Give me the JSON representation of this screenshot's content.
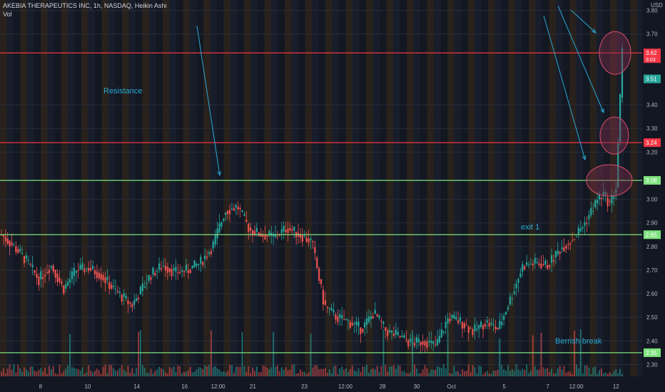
{
  "header": {
    "symbol_line": "AKEBIA THERAPEUTICS INC, 1h, NASDAQ, Heikin Ashi",
    "volume_label": "Vol"
  },
  "currency": "USD",
  "colors": {
    "background": "#131722",
    "up": "#26a69a",
    "down": "#ef5350",
    "resistance_line": "#f23645",
    "support_line": "#7ee37e",
    "annotation": "#2aa9d4",
    "circle_fill": "#7a2f4a",
    "circle_stroke": "#d94e6a"
  },
  "chart_data": {
    "type": "candlestick",
    "style": "Heikin Ashi",
    "ylim": [
      2.25,
      3.82
    ],
    "y_ticks": [
      "3.80",
      "3.70",
      "3.40",
      "3.30",
      "3.20",
      "3.00",
      "2.90",
      "2.80",
      "2.70",
      "2.60",
      "2.50",
      "2.40",
      "2.30"
    ],
    "x_ticks": [
      "8",
      "10",
      "14",
      "16",
      "12:00",
      "21",
      "23",
      "12:00",
      "28",
      "30",
      "Oct",
      "5",
      "7",
      "12:00",
      "12"
    ],
    "x_tick_pos": [
      0.063,
      0.139,
      0.218,
      0.295,
      0.349,
      0.405,
      0.488,
      0.554,
      0.614,
      0.669,
      0.725,
      0.81,
      0.88,
      0.926,
      0.99
    ],
    "price_path": [
      [
        0.0,
        2.85
      ],
      [
        0.02,
        2.8
      ],
      [
        0.04,
        2.74
      ],
      [
        0.06,
        2.66
      ],
      [
        0.08,
        2.72
      ],
      [
        0.1,
        2.62
      ],
      [
        0.12,
        2.7
      ],
      [
        0.14,
        2.71
      ],
      [
        0.16,
        2.68
      ],
      [
        0.18,
        2.62
      ],
      [
        0.21,
        2.55
      ],
      [
        0.24,
        2.68
      ],
      [
        0.26,
        2.72
      ],
      [
        0.28,
        2.69
      ],
      [
        0.3,
        2.7
      ],
      [
        0.32,
        2.73
      ],
      [
        0.34,
        2.8
      ],
      [
        0.36,
        2.95
      ],
      [
        0.38,
        2.97
      ],
      [
        0.4,
        2.87
      ],
      [
        0.42,
        2.85
      ],
      [
        0.44,
        2.84
      ],
      [
        0.46,
        2.88
      ],
      [
        0.48,
        2.85
      ],
      [
        0.5,
        2.82
      ],
      [
        0.52,
        2.55
      ],
      [
        0.54,
        2.5
      ],
      [
        0.56,
        2.48
      ],
      [
        0.58,
        2.45
      ],
      [
        0.6,
        2.52
      ],
      [
        0.62,
        2.44
      ],
      [
        0.64,
        2.42
      ],
      [
        0.66,
        2.39
      ],
      [
        0.68,
        2.4
      ],
      [
        0.7,
        2.38
      ],
      [
        0.72,
        2.5
      ],
      [
        0.74,
        2.48
      ],
      [
        0.76,
        2.44
      ],
      [
        0.78,
        2.48
      ],
      [
        0.8,
        2.45
      ],
      [
        0.82,
        2.58
      ],
      [
        0.84,
        2.72
      ],
      [
        0.86,
        2.73
      ],
      [
        0.88,
        2.72
      ],
      [
        0.9,
        2.79
      ],
      [
        0.92,
        2.83
      ],
      [
        0.94,
        2.9
      ],
      [
        0.96,
        3.0
      ],
      [
        0.97,
        3.02
      ],
      [
        0.98,
        2.98
      ],
      [
        0.99,
        3.05
      ],
      [
        1.0,
        3.62
      ]
    ],
    "levels": [
      {
        "price": 3.62,
        "label": "3.62",
        "sub": "3:03",
        "kind": "resistance"
      },
      {
        "price": 3.24,
        "label": "3.24",
        "kind": "resistance"
      },
      {
        "price": 3.08,
        "label": "3.08",
        "kind": "support"
      },
      {
        "price": 2.85,
        "label": "2.85",
        "kind": "support"
      },
      {
        "price": 2.35,
        "label": "2.35",
        "kind": "support"
      }
    ],
    "last_price_label": "3.51",
    "annotations": [
      {
        "text": "Resistance"
      },
      {
        "text": "exit 1"
      },
      {
        "text": "Berrish break"
      }
    ]
  }
}
